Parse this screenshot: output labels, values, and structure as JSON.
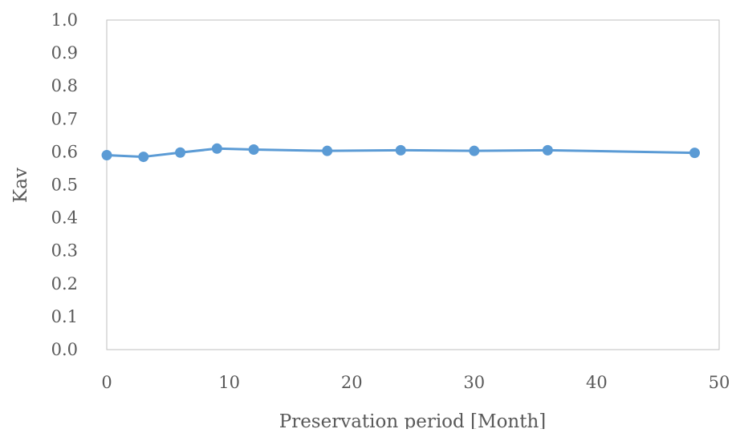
{
  "chart_data": {
    "type": "line",
    "title": "",
    "xlabel": "Preservation period [Month]",
    "ylabel": "Kav",
    "xlim": [
      0,
      50
    ],
    "ylim": [
      0.0,
      1.0
    ],
    "xticks": [
      0,
      10,
      20,
      30,
      40,
      50
    ],
    "xtick_labels": [
      "0",
      "10",
      "20",
      "30",
      "40",
      "50"
    ],
    "yticks": [
      0.0,
      0.1,
      0.2,
      0.3,
      0.4,
      0.5,
      0.6,
      0.7,
      0.8,
      0.9,
      1.0
    ],
    "ytick_labels": [
      "0.0",
      "0.1",
      "0.2",
      "0.3",
      "0.4",
      "0.5",
      "0.6",
      "0.7",
      "0.8",
      "0.9",
      "1.0"
    ],
    "grid": false,
    "legend": "none",
    "series": [
      {
        "color": "#5b9bd5",
        "marker": "circle",
        "x": [
          0,
          3,
          6,
          9,
          12,
          18,
          24,
          30,
          36,
          48
        ],
        "y": [
          0.59,
          0.585,
          0.598,
          0.61,
          0.607,
          0.603,
          0.605,
          0.603,
          0.605,
          0.597
        ]
      }
    ],
    "colors": {
      "axis": "#bfbfbf",
      "text": "#595959",
      "series": "#5b9bd5"
    }
  }
}
